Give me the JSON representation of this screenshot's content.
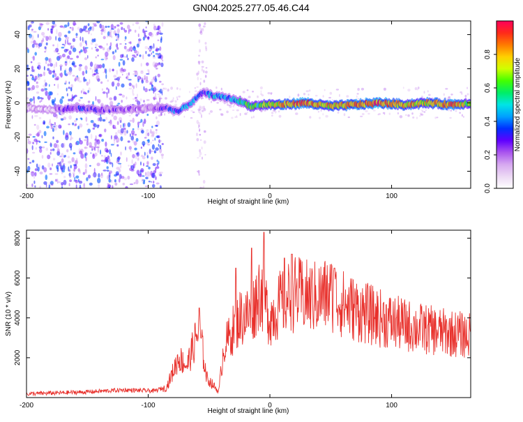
{
  "title": "GN04.2025.277.05.46.C44",
  "chart_data": [
    {
      "type": "heatmap",
      "xlabel": "Height of straight line (km)",
      "ylabel": "Frequency (Hz)",
      "xlim": [
        -200,
        165
      ],
      "ylim": [
        -50,
        48
      ],
      "xticks": [
        -200,
        -100,
        0,
        100
      ],
      "yticks": [
        -40,
        -20,
        0,
        20,
        40
      ],
      "colorbar": {
        "label": "Normalized spectral amplitude",
        "range": [
          0.0,
          1.0
        ],
        "ticks": [
          0.0,
          0.2,
          0.4,
          0.6,
          0.8
        ],
        "tick_labels": [
          "0.0",
          "0.2",
          "0.4",
          "0.6",
          "0.8"
        ],
        "colors": [
          "#ffffff",
          "#ecd9f4",
          "#d6a8f0",
          "#aa55ee",
          "#5f00ff",
          "#0030ff",
          "#00a0ff",
          "#00e5e5",
          "#00ee66",
          "#44ff00",
          "#d0ff00",
          "#ffd000",
          "#ff7a00",
          "#ff2a1a",
          "#ff005a"
        ]
      },
      "ridge": [
        {
          "x": -200,
          "y": -3,
          "amp": 0.05
        },
        {
          "x": -180,
          "y": -4,
          "amp": 0.08
        },
        {
          "x": -160,
          "y": -3,
          "amp": 0.3
        },
        {
          "x": -140,
          "y": -4,
          "amp": 0.22
        },
        {
          "x": -120,
          "y": -4,
          "amp": 0.2
        },
        {
          "x": -100,
          "y": -3,
          "amp": 0.12
        },
        {
          "x": -85,
          "y": -3,
          "amp": 0.3
        },
        {
          "x": -75,
          "y": -5,
          "amp": 0.35
        },
        {
          "x": -65,
          "y": 0,
          "amp": 0.4
        },
        {
          "x": -55,
          "y": 6,
          "amp": 0.3
        },
        {
          "x": -45,
          "y": 4,
          "amp": 0.45
        },
        {
          "x": -35,
          "y": 3,
          "amp": 0.4
        },
        {
          "x": -25,
          "y": 1,
          "amp": 0.5
        },
        {
          "x": -15,
          "y": -2,
          "amp": 0.6
        },
        {
          "x": -5,
          "y": -1,
          "amp": 0.6
        },
        {
          "x": 10,
          "y": -1,
          "amp": 0.8
        },
        {
          "x": 30,
          "y": 0,
          "amp": 0.85
        },
        {
          "x": 50,
          "y": -2,
          "amp": 0.75
        },
        {
          "x": 70,
          "y": -1,
          "amp": 0.85
        },
        {
          "x": 90,
          "y": 0,
          "amp": 0.9
        },
        {
          "x": 110,
          "y": -1,
          "amp": 0.8
        },
        {
          "x": 130,
          "y": 0,
          "amp": 0.75
        },
        {
          "x": 150,
          "y": -1,
          "amp": 0.85
        },
        {
          "x": 165,
          "y": 0,
          "amp": 0.6
        }
      ]
    },
    {
      "type": "line",
      "xlabel": "Height of straight line (km)",
      "ylabel": "SNR (10 * v/v)",
      "xlim": [
        -200,
        165
      ],
      "ylim": [
        0,
        8400
      ],
      "xticks": [
        -200,
        -100,
        0,
        100
      ],
      "yticks": [
        2000,
        4000,
        6000,
        8000
      ],
      "color": "#e8302b",
      "envelope": [
        {
          "x": -200,
          "y": 150
        },
        {
          "x": -150,
          "y": 250
        },
        {
          "x": -120,
          "y": 350
        },
        {
          "x": -95,
          "y": 300
        },
        {
          "x": -85,
          "y": 500
        },
        {
          "x": -75,
          "y": 2000
        },
        {
          "x": -68,
          "y": 1600
        },
        {
          "x": -58,
          "y": 3500
        },
        {
          "x": -52,
          "y": 1000
        },
        {
          "x": -42,
          "y": 300
        },
        {
          "x": -38,
          "y": 2500
        },
        {
          "x": -32,
          "y": 3200
        },
        {
          "x": -25,
          "y": 4000
        },
        {
          "x": -15,
          "y": 4200
        },
        {
          "x": -8,
          "y": 5500
        },
        {
          "x": 0,
          "y": 4000
        },
        {
          "x": 10,
          "y": 4800
        },
        {
          "x": 20,
          "y": 5200
        },
        {
          "x": 35,
          "y": 5000
        },
        {
          "x": 50,
          "y": 5200
        },
        {
          "x": 60,
          "y": 4700
        },
        {
          "x": 80,
          "y": 4200
        },
        {
          "x": 100,
          "y": 3800
        },
        {
          "x": 120,
          "y": 3500
        },
        {
          "x": 140,
          "y": 3300
        },
        {
          "x": 165,
          "y": 3100
        }
      ],
      "peaks": [
        {
          "x": -58,
          "y": 4500
        },
        {
          "x": -28,
          "y": 6500
        },
        {
          "x": -15,
          "y": 7500
        },
        {
          "x": -5,
          "y": 8300
        },
        {
          "x": 12,
          "y": 7000
        },
        {
          "x": 18,
          "y": 7200
        },
        {
          "x": 53,
          "y": 6500
        }
      ]
    }
  ]
}
